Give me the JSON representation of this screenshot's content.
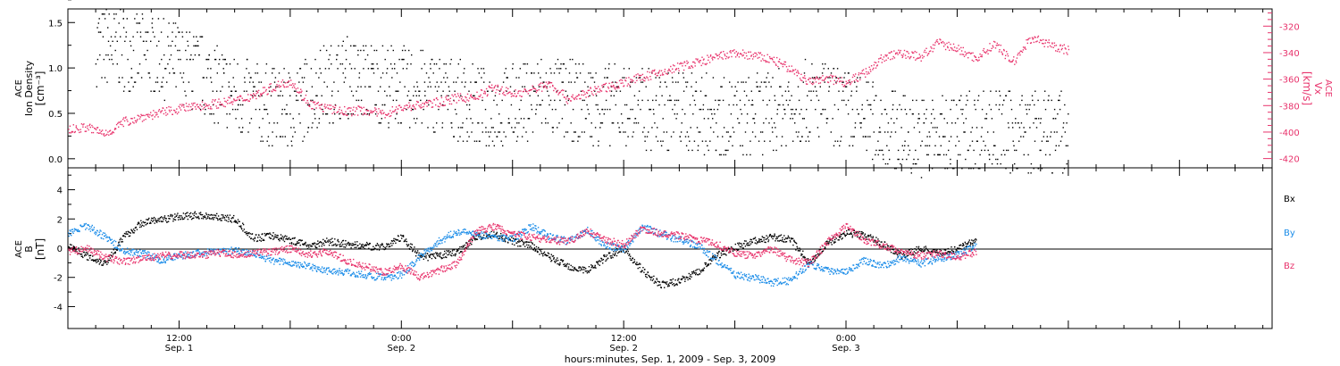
{
  "colors": {
    "black": "#000000",
    "pink": "#e8336c",
    "blue": "#1a8ce8",
    "bg": "#ffffff"
  },
  "chart_data": [
    {
      "type": "scatter",
      "panel": "top",
      "ylabel_left": [
        "ACE",
        "Ion Density",
        "[cm⁻³]"
      ],
      "ylabel_right": [
        "ACE",
        "Vx",
        "[km/s]"
      ],
      "ylim_left": [
        -0.1,
        1.65
      ],
      "yticks_left": [
        "0.0",
        "0.5",
        "1.0",
        "1.5"
      ],
      "ytick_values_left": [
        0.0,
        0.5,
        1.0,
        1.5
      ],
      "ylim_right": [
        -427,
        -307
      ],
      "yticks_right": [
        "-420",
        "-400",
        "-380",
        "-360",
        "-340",
        "-320"
      ],
      "ytick_values_right": [
        -420,
        -400,
        -380,
        -360,
        -340,
        -320
      ],
      "series": [
        {
          "name": "Ion Density",
          "axis": "left",
          "color": "#000000",
          "x": [
            3,
            6,
            9,
            12,
            15,
            18,
            21,
            24,
            27,
            30,
            33,
            36,
            39,
            42,
            45,
            48,
            51,
            54,
            57,
            60,
            63,
            66,
            69,
            72,
            75,
            78,
            81,
            84,
            87,
            90,
            93,
            96,
            99,
            102,
            105,
            108
          ],
          "y": [
            1.25,
            1.2,
            1.15,
            1.05,
            0.9,
            0.7,
            0.6,
            0.55,
            0.8,
            0.9,
            0.85,
            0.8,
            0.75,
            0.65,
            0.55,
            0.6,
            0.7,
            0.65,
            0.6,
            0.6,
            0.55,
            0.55,
            0.5,
            0.45,
            0.5,
            0.6,
            0.65,
            0.55,
            0.4,
            0.3,
            0.25,
            0.3,
            0.35,
            0.3,
            0.3,
            0.3
          ]
        },
        {
          "name": "Vx",
          "axis": "right",
          "color": "#e8336c",
          "x": [
            0,
            2,
            4,
            6,
            8,
            10,
            12,
            14,
            16,
            18,
            20,
            22,
            24,
            26,
            28,
            30,
            32,
            34,
            36,
            38,
            40,
            42,
            44,
            46,
            48,
            50,
            52,
            54,
            56,
            58,
            60,
            62,
            64,
            66,
            68,
            70,
            72,
            74,
            76,
            78,
            80,
            82,
            84,
            86,
            88,
            90,
            92,
            94,
            96,
            98,
            100,
            102,
            104,
            106,
            108
          ],
          "y": [
            -398,
            -396,
            -401,
            -392,
            -388,
            -385,
            -382,
            -380,
            -378,
            -376,
            -372,
            -366,
            -361,
            -378,
            -382,
            -384,
            -383,
            -386,
            -381,
            -379,
            -377,
            -374,
            -373,
            -366,
            -371,
            -368,
            -363,
            -375,
            -370,
            -366,
            -362,
            -358,
            -355,
            -350,
            -347,
            -343,
            -340,
            -342,
            -345,
            -352,
            -362,
            -359,
            -362,
            -355,
            -343,
            -340,
            -343,
            -332,
            -337,
            -344,
            -333,
            -347,
            -328,
            -334,
            -338
          ]
        }
      ]
    },
    {
      "type": "scatter",
      "panel": "bottom",
      "ylabel": [
        "ACE",
        "B",
        "[nT]"
      ],
      "ylim": [
        -5.5,
        5.5
      ],
      "yticks": [
        "-4",
        "-2",
        "0",
        "2",
        "4"
      ],
      "ytick_values": [
        -4,
        -2,
        0,
        2,
        4
      ],
      "x_axis_label": "hours:minutes, Sep.  1, 2009 - Sep.  3, 2009",
      "xlim": [
        0,
        130
      ],
      "xticks": [
        {
          "x": 12,
          "label": "12:00",
          "sub": "Sep. 1"
        },
        {
          "x": 36,
          "label": "0:00",
          "sub": "Sep. 2"
        },
        {
          "x": 60,
          "label": "12:00",
          "sub": "Sep. 2"
        },
        {
          "x": 84,
          "label": "0:00",
          "sub": "Sep. 3"
        }
      ],
      "legend": [
        "Bx",
        "By",
        "Bz"
      ],
      "series": [
        {
          "name": "Bx",
          "color": "#000000",
          "x": [
            0,
            2,
            4,
            6,
            8,
            10,
            12,
            14,
            16,
            18,
            20,
            22,
            24,
            26,
            28,
            30,
            32,
            34,
            36,
            38,
            40,
            42,
            44,
            46,
            48,
            50,
            52,
            54,
            56,
            58,
            60,
            62,
            64,
            66,
            68,
            70,
            72,
            74,
            76,
            78,
            80,
            82,
            84,
            86,
            88,
            90,
            92,
            94,
            96,
            98
          ],
          "y": [
            0.2,
            -0.5,
            -1.0,
            0.8,
            1.8,
            2.0,
            2.2,
            2.3,
            2.2,
            2.0,
            0.7,
            0.9,
            0.6,
            0.2,
            0.5,
            0.3,
            0.2,
            0.1,
            0.8,
            -0.6,
            -0.5,
            -0.2,
            0.8,
            1.0,
            0.5,
            0.2,
            -0.6,
            -1.2,
            -1.5,
            -0.6,
            0.0,
            -1.5,
            -2.5,
            -2.2,
            -1.6,
            -0.5,
            0.1,
            0.5,
            0.8,
            0.6,
            -1.0,
            0.4,
            1.1,
            0.9,
            0.3,
            -0.5,
            0.0,
            -0.3,
            0.0,
            0.6
          ]
        },
        {
          "name": "By",
          "color": "#1a8ce8",
          "x": [
            0,
            2,
            4,
            6,
            8,
            10,
            12,
            14,
            16,
            18,
            20,
            22,
            24,
            26,
            28,
            30,
            32,
            34,
            36,
            38,
            40,
            42,
            44,
            46,
            48,
            50,
            52,
            54,
            56,
            58,
            60,
            62,
            64,
            66,
            68,
            70,
            72,
            74,
            76,
            78,
            80,
            82,
            84,
            86,
            88,
            90,
            92,
            94,
            96,
            98
          ],
          "y": [
            1.0,
            1.6,
            0.8,
            -0.2,
            -0.3,
            -0.8,
            -0.5,
            -0.3,
            -0.2,
            -0.1,
            -0.3,
            -0.8,
            -1.0,
            -1.2,
            -1.5,
            -1.6,
            -1.8,
            -2.0,
            -1.8,
            -0.5,
            0.5,
            1.2,
            1.0,
            0.8,
            0.7,
            1.5,
            0.8,
            0.5,
            1.3,
            0.2,
            0.0,
            1.5,
            1.0,
            0.6,
            0.2,
            -0.8,
            -1.8,
            -2.0,
            -2.3,
            -2.2,
            -1.0,
            -1.5,
            -1.5,
            -0.8,
            -1.2,
            -0.6,
            -1.0,
            -0.7,
            -0.4,
            0.2
          ]
        },
        {
          "name": "Bz",
          "color": "#e8336c",
          "x": [
            0,
            2,
            4,
            6,
            8,
            10,
            12,
            14,
            16,
            18,
            20,
            22,
            24,
            26,
            28,
            30,
            32,
            34,
            36,
            38,
            40,
            42,
            44,
            46,
            48,
            50,
            52,
            54,
            56,
            58,
            60,
            62,
            64,
            66,
            68,
            70,
            72,
            74,
            76,
            78,
            80,
            82,
            84,
            86,
            88,
            90,
            92,
            94,
            96,
            98
          ],
          "y": [
            -0.2,
            0.0,
            -0.6,
            -0.9,
            -0.7,
            -0.5,
            -0.4,
            -0.5,
            -0.3,
            -0.4,
            -0.3,
            -0.2,
            0.0,
            -0.4,
            -0.2,
            -0.8,
            -1.2,
            -1.6,
            -1.2,
            -2.0,
            -1.5,
            -1.0,
            1.2,
            1.5,
            1.0,
            0.8,
            0.6,
            0.5,
            1.2,
            0.6,
            0.3,
            1.4,
            1.0,
            0.9,
            0.6,
            0.3,
            -0.3,
            -0.5,
            0.0,
            -0.8,
            -1.0,
            0.5,
            1.5,
            0.6,
            0.2,
            -0.2,
            -0.5,
            -0.3,
            -0.6,
            -0.2
          ]
        }
      ]
    }
  ]
}
